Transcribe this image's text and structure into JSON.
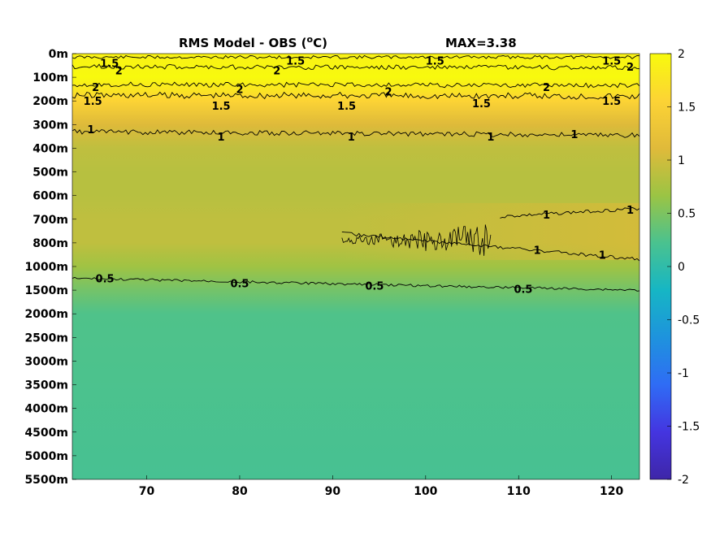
{
  "chart_data": {
    "type": "heatmap",
    "title": "RMS Model - OBS (",
    "title_unit": "o",
    "title_suffix": "C)",
    "max_label": "MAX=3.38",
    "xlabel": "",
    "ylabel": "",
    "x_range": [
      62,
      123
    ],
    "x_ticks": [
      70,
      80,
      90,
      100,
      110,
      120
    ],
    "y_ticks": [
      "0m",
      "100m",
      "200m",
      "300m",
      "400m",
      "500m",
      "600m",
      "700m",
      "800m",
      "1000m",
      "1500m",
      "2000m",
      "2500m",
      "3000m",
      "3500m",
      "4000m",
      "4500m",
      "5000m",
      "5500m"
    ],
    "colorbar": {
      "range": [
        -2,
        2
      ],
      "ticks": [
        "2",
        "1.5",
        "1",
        "0.5",
        "0",
        "-0.5",
        "-1",
        "-1.5",
        "-2"
      ],
      "colors": [
        "#3e26a8",
        "#4435e0",
        "#2f6cf5",
        "#1e93dd",
        "#16b6c4",
        "#4ac28f",
        "#9bc444",
        "#e0ba3a",
        "#fcd335",
        "#f8fa0d"
      ]
    },
    "depth_profile_rms": [
      {
        "depth": "0m",
        "value": 1.9
      },
      {
        "depth": "100m",
        "value": 2.0
      },
      {
        "depth": "200m",
        "value": 1.55
      },
      {
        "depth": "300m",
        "value": 1.1
      },
      {
        "depth": "400m",
        "value": 0.9
      },
      {
        "depth": "500m",
        "value": 0.85
      },
      {
        "depth": "600m",
        "value": 0.85
      },
      {
        "depth": "700m",
        "value": 0.9
      },
      {
        "depth": "800m",
        "value": 0.9
      },
      {
        "depth": "1000m",
        "value": 0.7
      },
      {
        "depth": "1500m",
        "value": 0.45
      },
      {
        "depth": "2000m",
        "value": 0.25
      },
      {
        "depth": "5500m",
        "value": 0.2
      }
    ],
    "contour_labels": [
      {
        "text": "1.5",
        "x": 66,
        "depth_index": 0.4
      },
      {
        "text": "2",
        "x": 67,
        "depth_index": 0.7
      },
      {
        "text": "2",
        "x": 64.5,
        "depth_index": 1.4
      },
      {
        "text": "1.5",
        "x": 64.2,
        "depth_index": 2.0
      },
      {
        "text": "2",
        "x": 84,
        "depth_index": 0.7
      },
      {
        "text": "1.5",
        "x": 86,
        "depth_index": 0.3
      },
      {
        "text": "2",
        "x": 80,
        "depth_index": 1.5
      },
      {
        "text": "1.5",
        "x": 78,
        "depth_index": 2.2
      },
      {
        "text": "1.5",
        "x": 91.5,
        "depth_index": 2.2
      },
      {
        "text": "2",
        "x": 96,
        "depth_index": 1.6
      },
      {
        "text": "1.5",
        "x": 101,
        "depth_index": 0.3
      },
      {
        "text": "1.5",
        "x": 106,
        "depth_index": 2.1
      },
      {
        "text": "2",
        "x": 113,
        "depth_index": 1.4
      },
      {
        "text": "1.5",
        "x": 120,
        "depth_index": 0.3
      },
      {
        "text": "1.5",
        "x": 120,
        "depth_index": 2.0
      },
      {
        "text": "2",
        "x": 122,
        "depth_index": 0.55
      },
      {
        "text": "1",
        "x": 64,
        "depth_index": 3.2
      },
      {
        "text": "1",
        "x": 78,
        "depth_index": 3.5
      },
      {
        "text": "1",
        "x": 92,
        "depth_index": 3.5
      },
      {
        "text": "1",
        "x": 107,
        "depth_index": 3.5
      },
      {
        "text": "1",
        "x": 116,
        "depth_index": 3.4
      },
      {
        "text": "1",
        "x": 113,
        "depth_index": 6.8
      },
      {
        "text": "1",
        "x": 122,
        "depth_index": 6.6
      },
      {
        "text": "1",
        "x": 112,
        "depth_index": 8.3
      },
      {
        "text": "1",
        "x": 119,
        "depth_index": 8.5
      },
      {
        "text": "0.5",
        "x": 65.5,
        "depth_index": 9.5
      },
      {
        "text": "0.5",
        "x": 80,
        "depth_index": 9.7
      },
      {
        "text": "0.5",
        "x": 94.5,
        "depth_index": 9.8
      },
      {
        "text": "0.5",
        "x": 110.5,
        "depth_index": 9.95
      }
    ]
  }
}
